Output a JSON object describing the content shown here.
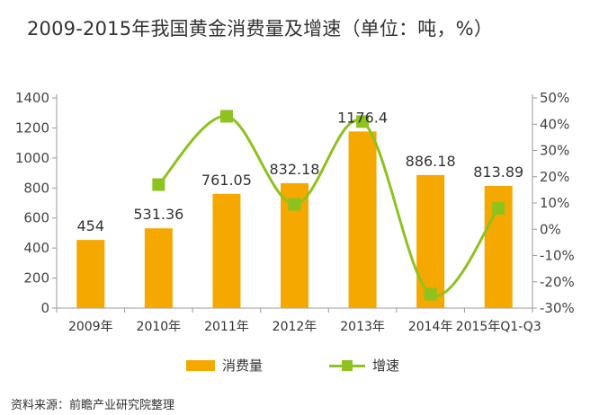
{
  "source": "资料来源：前瞻产业研究院整理",
  "chart_data": {
    "type": "bar",
    "title": "2009-2015年我国黄金消费量及增速（单位：吨，%）",
    "categories": [
      "2009年",
      "2010年",
      "2011年",
      "2012年",
      "2013年",
      "2014年",
      "2015年Q1-Q3"
    ],
    "series": [
      {
        "name": "消费量",
        "type": "bar",
        "axis": "left",
        "color": "#F5A800",
        "values": [
          454,
          531.36,
          761.05,
          832.18,
          1176.4,
          886.18,
          813.89
        ],
        "labels": [
          "454",
          "531.36",
          "761.05",
          "832.18",
          "1176.4",
          "886.18",
          "813.89"
        ]
      },
      {
        "name": "增速",
        "type": "line",
        "axis": "right",
        "color": "#8DC21F",
        "smooth": true,
        "values": [
          null,
          17,
          43,
          9.5,
          41,
          -24.7,
          8
        ]
      }
    ],
    "ylim": [
      0,
      1400
    ],
    "yticks": [
      "0",
      "200",
      "400",
      "600",
      "800",
      "1000",
      "1200",
      "1400"
    ],
    "y2lim": [
      -30,
      50
    ],
    "y2ticks": [
      "-30%",
      "-20%",
      "-10%",
      "0%",
      "10%",
      "20%",
      "30%",
      "40%",
      "50%"
    ],
    "grid": false,
    "legend": "bottom"
  }
}
